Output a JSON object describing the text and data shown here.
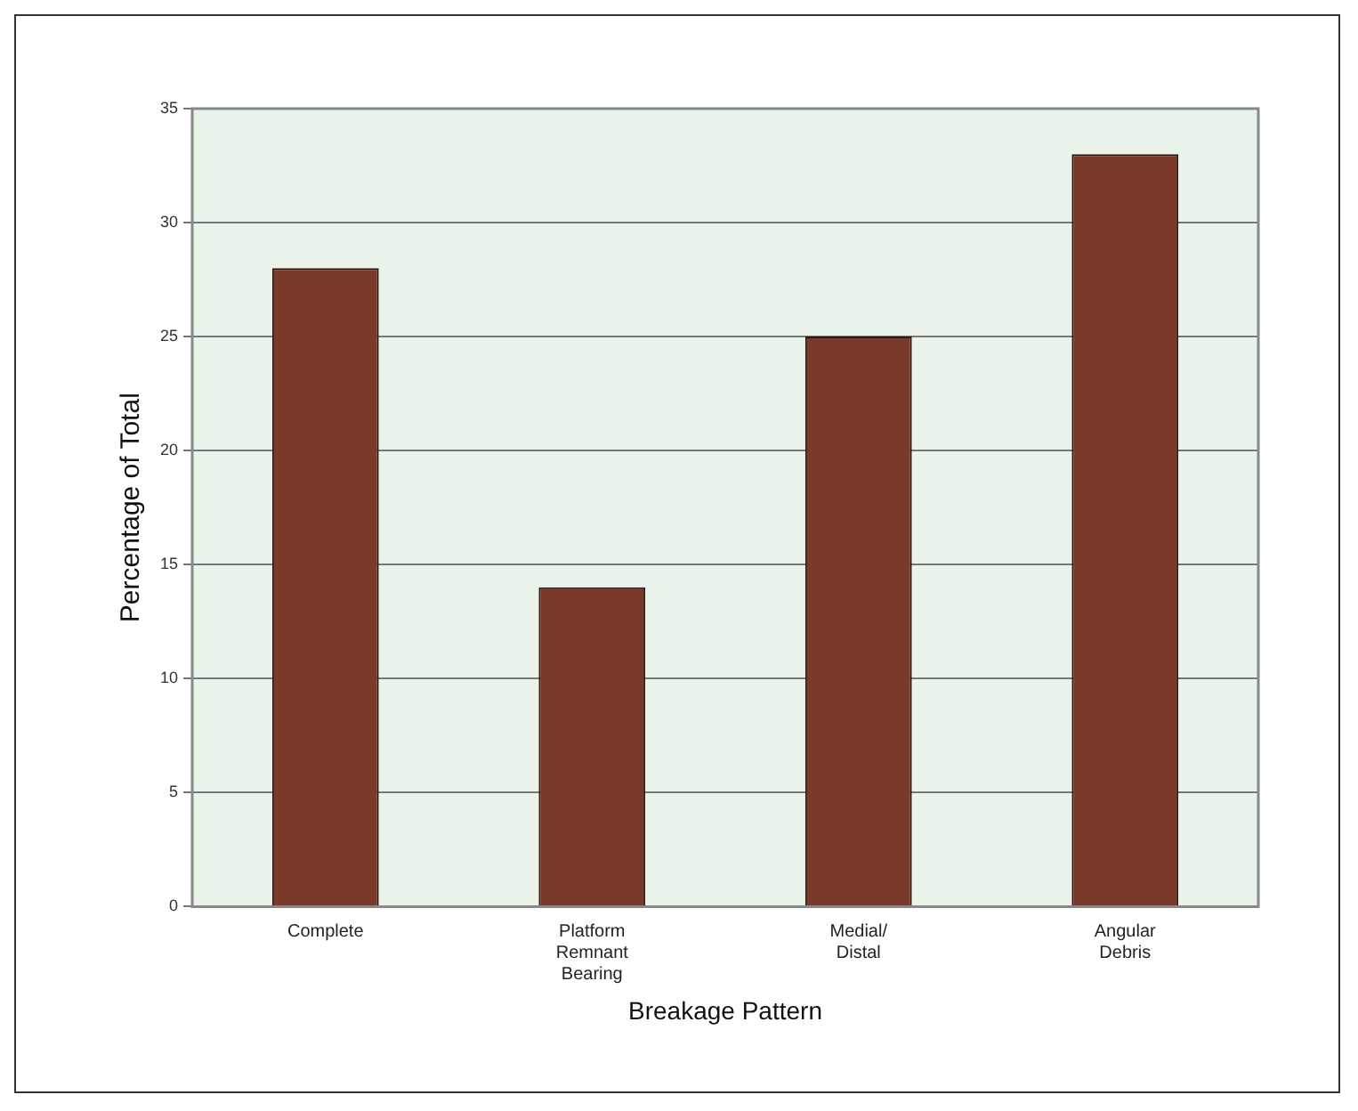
{
  "chart_data": {
    "type": "bar",
    "xlabel": "Breakage Pattern",
    "ylabel": "Percentage of Total",
    "categories": [
      "Complete",
      "Platform Remnant Bearing",
      "Medial/ Distal",
      "Angular Debris"
    ],
    "values": [
      28,
      14,
      25,
      33
    ],
    "color": "#7a3a2a",
    "ylim": [
      0,
      35
    ],
    "yticks": [
      0,
      5,
      10,
      15,
      20,
      25,
      30,
      35
    ],
    "grid": "y",
    "legend": false
  }
}
